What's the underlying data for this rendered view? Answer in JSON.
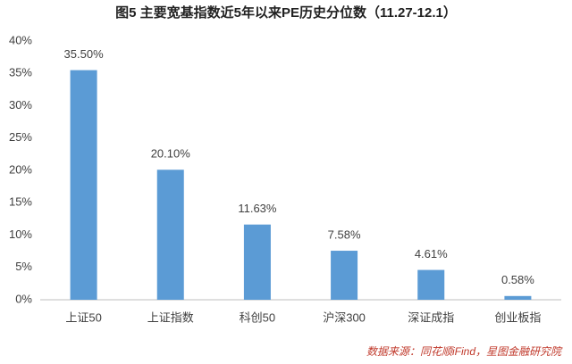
{
  "chart_data": {
    "type": "bar",
    "title": "图5  主要宽基指数近5年以来PE历史分位数（11.27-12.1）",
    "source": "数据来源：同花顺iFind，星图金融研究院",
    "categories": [
      "上证50",
      "上证指数",
      "科创50",
      "沪深300",
      "深证成指",
      "创业板指"
    ],
    "values": [
      35.5,
      20.1,
      11.63,
      7.58,
      4.61,
      0.58
    ],
    "value_labels": [
      "35.50%",
      "20.10%",
      "11.63%",
      "7.58%",
      "4.61%",
      "0.58%"
    ],
    "color": "#5b9bd5",
    "ylim": [
      0,
      40
    ],
    "yticks": [
      {
        "value": 0,
        "label": "0%"
      },
      {
        "value": 5,
        "label": "5%"
      },
      {
        "value": 10,
        "label": "10%"
      },
      {
        "value": 15,
        "label": "15%"
      },
      {
        "value": 20,
        "label": "20%"
      },
      {
        "value": 25,
        "label": "25%"
      },
      {
        "value": 30,
        "label": "30%"
      },
      {
        "value": 35,
        "label": "35%"
      },
      {
        "value": 40,
        "label": "40%"
      }
    ],
    "grid": false
  }
}
